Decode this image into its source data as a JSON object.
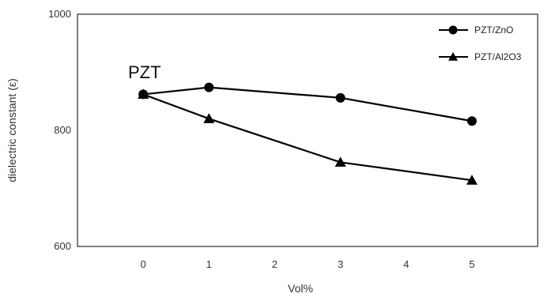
{
  "chart_data": {
    "type": "line",
    "xlabel": "Vol%",
    "ylabel": "dielectric constant (ε)",
    "x": [
      0,
      1,
      2,
      3,
      4,
      5
    ],
    "xlim": [
      -1,
      6
    ],
    "ylim": [
      600,
      1000
    ],
    "y_ticks": [
      600,
      800,
      1000
    ],
    "grid": false,
    "legend_position": "top-right",
    "annotation": "PZT",
    "series": [
      {
        "name": "PZT/ZnO",
        "marker": "circle",
        "color": "#000000",
        "points": [
          [
            0,
            862
          ],
          [
            1,
            874
          ],
          [
            3,
            856
          ],
          [
            5,
            816
          ]
        ]
      },
      {
        "name": "PZT/Al2O3",
        "marker": "triangle",
        "color": "#000000",
        "points": [
          [
            0,
            862
          ],
          [
            1,
            820
          ],
          [
            3,
            745
          ],
          [
            5,
            714
          ]
        ]
      }
    ]
  }
}
